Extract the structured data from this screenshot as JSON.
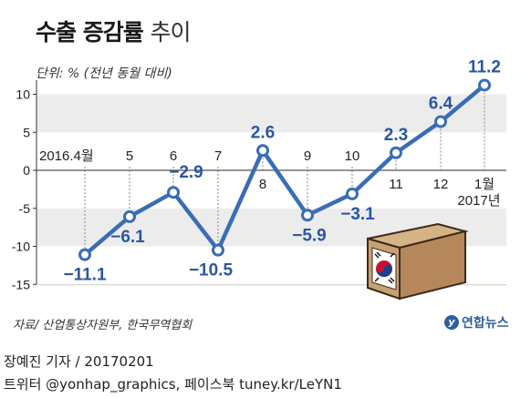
{
  "title": {
    "main": "수출 증감률",
    "sub": "추이"
  },
  "unit": "단위: % (전년 동월 대비)",
  "source": "자료/ 산업통상자원부, 한국무역협회",
  "logo": "연합뉴스",
  "credit": {
    "author": "장예진 기자 / 20170201",
    "social": "트위터 @yonhap_graphics, 페이스북 tuney.kr/LeYN1"
  },
  "colors": {
    "line": "#3a6db5",
    "label": "#2a57a0",
    "band": "#ececec",
    "zero": "#555555"
  },
  "icon": "exporting-box-with-korean-flag-icon",
  "chart_data": {
    "type": "line",
    "x": [
      "2016.4월",
      "5",
      "6",
      "7",
      "8",
      "9",
      "10",
      "11",
      "12",
      "1월 2017년"
    ],
    "values": [
      -11.1,
      -6.1,
      -2.9,
      -10.5,
      2.6,
      -5.9,
      -3.1,
      2.3,
      6.4,
      11.2
    ],
    "value_labels": [
      "−11.1",
      "−6.1",
      "−2.9",
      "−10.5",
      "2.6",
      "−5.9",
      "−3.1",
      "2.3",
      "6.4",
      "11.2"
    ],
    "y_ticks": [
      10,
      5,
      0,
      -5,
      -10,
      -15
    ],
    "ylim": [
      -15,
      12
    ],
    "xlabel": "",
    "ylabel": "",
    "grid": "alternating horizontal bands"
  }
}
